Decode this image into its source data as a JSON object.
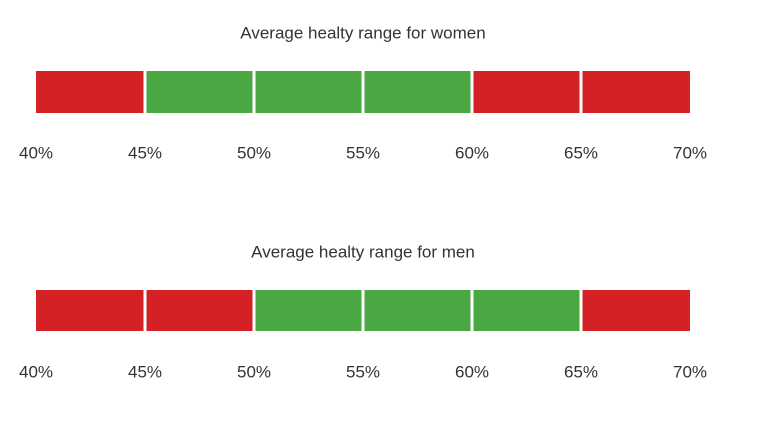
{
  "chart_data": [
    {
      "type": "bar",
      "title": "Average healty range for women",
      "tick_labels": [
        "40%",
        "45%",
        "50%",
        "55%",
        "60%",
        "65%",
        "70%"
      ],
      "x_range": [
        40,
        70
      ],
      "segment_width": 5,
      "segments": [
        {
          "from": 40,
          "to": 45,
          "status": "unhealthy"
        },
        {
          "from": 45,
          "to": 50,
          "status": "healthy"
        },
        {
          "from": 50,
          "to": 55,
          "status": "healthy"
        },
        {
          "from": 55,
          "to": 60,
          "status": "healthy"
        },
        {
          "from": 60,
          "to": 65,
          "status": "unhealthy"
        },
        {
          "from": 65,
          "to": 70,
          "status": "unhealthy"
        }
      ],
      "healthy_range": [
        45,
        60
      ]
    },
    {
      "type": "bar",
      "title": "Average healty range for men",
      "tick_labels": [
        "40%",
        "45%",
        "50%",
        "55%",
        "60%",
        "65%",
        "70%"
      ],
      "x_range": [
        40,
        70
      ],
      "segment_width": 5,
      "segments": [
        {
          "from": 40,
          "to": 45,
          "status": "unhealthy"
        },
        {
          "from": 45,
          "to": 50,
          "status": "unhealthy"
        },
        {
          "from": 50,
          "to": 55,
          "status": "healthy"
        },
        {
          "from": 55,
          "to": 60,
          "status": "healthy"
        },
        {
          "from": 60,
          "to": 65,
          "status": "healthy"
        },
        {
          "from": 65,
          "to": 70,
          "status": "unhealthy"
        }
      ],
      "healthy_range": [
        50,
        65
      ]
    }
  ],
  "colors": {
    "healthy": "#4aa843",
    "unhealthy": "#d42126",
    "text": "#333333",
    "divider": "#ffffff"
  }
}
